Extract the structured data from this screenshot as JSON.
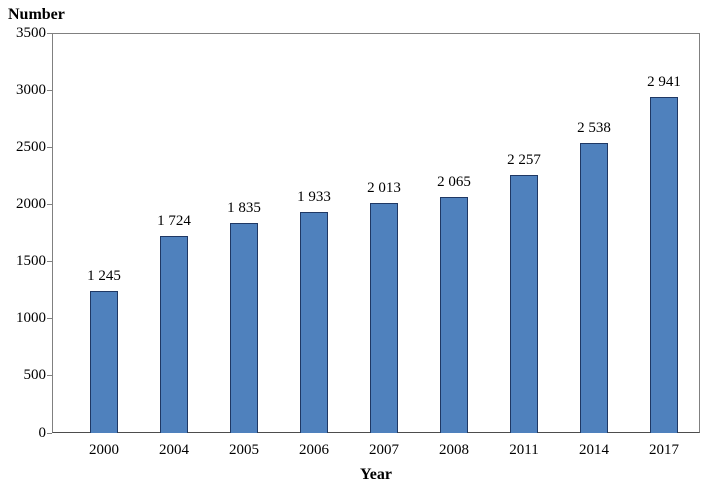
{
  "figure": {
    "y_axis_title": "Number",
    "x_axis_title": "Year"
  },
  "chart_data": {
    "type": "bar",
    "title": "Number",
    "xlabel": "Year",
    "ylabel": "Number",
    "categories": [
      "2000",
      "2004",
      "2005",
      "2006",
      "2007",
      "2008",
      "2011",
      "2014",
      "2017"
    ],
    "values": [
      1245,
      1724,
      1835,
      1933,
      2013,
      2065,
      2257,
      2538,
      2941
    ],
    "value_labels": [
      "1 245",
      "1 724",
      "1 835",
      "1 933",
      "2 013",
      "2 065",
      "2 257",
      "2 538",
      "2 941"
    ],
    "ylim": [
      0,
      3500
    ],
    "ytick_step": 500,
    "ytick_labels": [
      "0",
      "500",
      "1000",
      "1500",
      "2000",
      "2500",
      "3000",
      "3500"
    ],
    "grid": false,
    "legend": "none",
    "bar_fill_color": "#4f81bd",
    "bar_border_color": "#1f3864",
    "plot_border_color": "#808080",
    "background_color": "#ffffff"
  }
}
